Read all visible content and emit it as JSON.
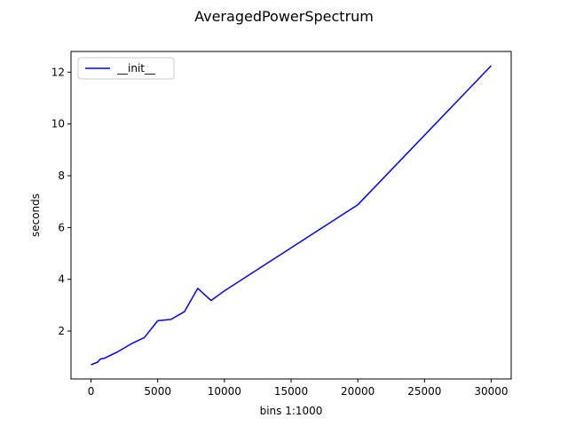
{
  "chart_data": {
    "type": "line",
    "title": "AveragedPowerSpectrum",
    "xlabel": "bins 1:1000",
    "ylabel": "seconds",
    "xlim": [
      -1500,
      31500
    ],
    "ylim": [
      0.15,
      12.8
    ],
    "xticks": [
      0,
      5000,
      10000,
      15000,
      20000,
      25000,
      30000
    ],
    "yticks": [
      2,
      4,
      6,
      8,
      10,
      12
    ],
    "grid": false,
    "legend": {
      "position": "top-left"
    },
    "series": [
      {
        "name": "__init__",
        "color": "#0000ff",
        "x": [
          0,
          500,
          700,
          1000,
          2000,
          3000,
          4000,
          5000,
          6000,
          7000,
          8000,
          9000,
          10000,
          20000,
          30000
        ],
        "y": [
          0.7,
          0.8,
          0.92,
          0.95,
          1.2,
          1.5,
          1.75,
          2.4,
          2.45,
          2.75,
          3.65,
          3.18,
          3.55,
          6.88,
          12.25
        ]
      }
    ]
  }
}
